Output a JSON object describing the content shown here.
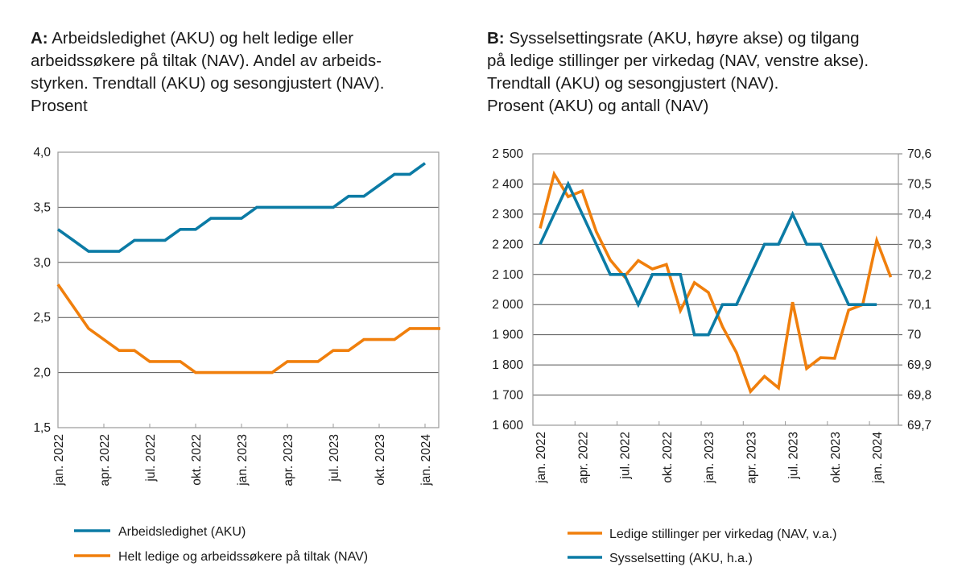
{
  "chart_data": [
    {
      "type": "line",
      "panel_label": "A:",
      "title_lines": [
        "Arbeidsledighet (AKU) og helt ledige eller",
        "arbeidssøkere på tiltak (NAV). Andel av arbeids-",
        "styrken. Trendtall (AKU) og sesongjustert (NAV).",
        "Prosent"
      ],
      "x": [
        "jan. 2022",
        "feb. 2022",
        "mar. 2022",
        "apr. 2022",
        "mai 2022",
        "jun. 2022",
        "jul. 2022",
        "aug. 2022",
        "sep. 2022",
        "okt. 2022",
        "nov. 2022",
        "des. 2022",
        "jan. 2023",
        "feb. 2023",
        "mar. 2023",
        "apr. 2023",
        "mai 2023",
        "jun. 2023",
        "jul. 2023",
        "aug. 2023",
        "sep. 2023",
        "okt. 2023",
        "nov. 2023",
        "des. 2023",
        "jan. 2024",
        "feb. 2024"
      ],
      "x_tick_labels": [
        "jan. 2022",
        "apr. 2022",
        "jul. 2022",
        "okt. 2022",
        "jan. 2023",
        "apr. 2023",
        "jul. 2023",
        "okt. 2023",
        "jan. 2024"
      ],
      "y_tick_labels": [
        "4,0",
        "3,5",
        "3,0",
        "2,5",
        "2,0",
        "1,5"
      ],
      "ylim": [
        1.5,
        4.0
      ],
      "grid": "horizontal",
      "legend_position": "bottom",
      "series": [
        {
          "name": "Arbeidsledighet (AKU)",
          "color": "#0b7ba5",
          "values": [
            3.3,
            3.2,
            3.1,
            3.1,
            3.1,
            3.2,
            3.2,
            3.2,
            3.3,
            3.3,
            3.4,
            3.4,
            3.4,
            3.5,
            3.5,
            3.5,
            3.5,
            3.5,
            3.5,
            3.6,
            3.6,
            3.7,
            3.8,
            3.8,
            3.9,
            null
          ]
        },
        {
          "name": "Helt ledige og arbeidssøkere på tiltak (NAV)",
          "color": "#f07f0c",
          "values": [
            2.8,
            2.6,
            2.4,
            2.3,
            2.2,
            2.2,
            2.1,
            2.1,
            2.1,
            2.0,
            2.0,
            2.0,
            2.0,
            2.0,
            2.0,
            2.1,
            2.1,
            2.1,
            2.2,
            2.2,
            2.3,
            2.3,
            2.3,
            2.4,
            2.4,
            2.4
          ]
        }
      ]
    },
    {
      "type": "line",
      "panel_label": "B:",
      "title_lines": [
        "Sysselsettingsrate (AKU, høyre akse) og tilgang",
        "på ledige stillinger per virkedag (NAV, venstre akse).",
        "Trendtall (AKU) og sesongjustert (NAV).",
        "Prosent (AKU) og antall (NAV)"
      ],
      "x": [
        "jan. 2022",
        "feb. 2022",
        "mar. 2022",
        "apr. 2022",
        "mai 2022",
        "jun. 2022",
        "jul. 2022",
        "aug. 2022",
        "sep. 2022",
        "okt. 2022",
        "nov. 2022",
        "des. 2022",
        "jan. 2023",
        "feb. 2023",
        "mar. 2023",
        "apr. 2023",
        "mai 2023",
        "jun. 2023",
        "jul. 2023",
        "aug. 2023",
        "sep. 2023",
        "okt. 2023",
        "nov. 2023",
        "des. 2023",
        "jan. 2024",
        "feb. 2024"
      ],
      "x_tick_labels": [
        "jan. 2022",
        "apr. 2022",
        "jul. 2022",
        "okt. 2022",
        "jan. 2023",
        "apr. 2023",
        "jul. 2023",
        "okt. 2023",
        "jan. 2024"
      ],
      "y_left_tick_labels": [
        "2 500",
        "2 400",
        "2 300",
        "2 200",
        "2 100",
        "2 000",
        "1 900",
        "1 800",
        "1 700",
        "1 600"
      ],
      "y_right_tick_labels": [
        "70,6",
        "70,5",
        "70,4",
        "70,3",
        "70,2",
        "70,1",
        "70",
        "69,9",
        "69,8",
        "69,7"
      ],
      "ylim_left": [
        1600,
        2500
      ],
      "ylim_right": [
        69.7,
        70.6
      ],
      "grid": "horizontal",
      "legend_position": "bottom",
      "series": [
        {
          "name": "Ledige stillinger per virkedag (NAV, v.a.)",
          "color": "#f07f0c",
          "axis": "left",
          "values": [
            2253,
            2433,
            2358,
            2377,
            2242,
            2148,
            2093,
            2146,
            2118,
            2133,
            1980,
            2073,
            2040,
            1927,
            1841,
            1712,
            1762,
            1724,
            2008,
            1788,
            1824,
            1822,
            1982,
            2000,
            2213,
            2091
          ]
        },
        {
          "name": "Sysselsetting (AKU, h.a.)",
          "color": "#0b7ba5",
          "axis": "right",
          "values": [
            70.3,
            70.4,
            70.5,
            70.4,
            70.3,
            70.2,
            70.2,
            70.1,
            70.2,
            70.2,
            70.2,
            70.0,
            70.0,
            70.1,
            70.1,
            70.2,
            70.3,
            70.3,
            70.4,
            70.3,
            70.3,
            70.2,
            70.1,
            70.1,
            70.1,
            null
          ]
        }
      ]
    }
  ]
}
